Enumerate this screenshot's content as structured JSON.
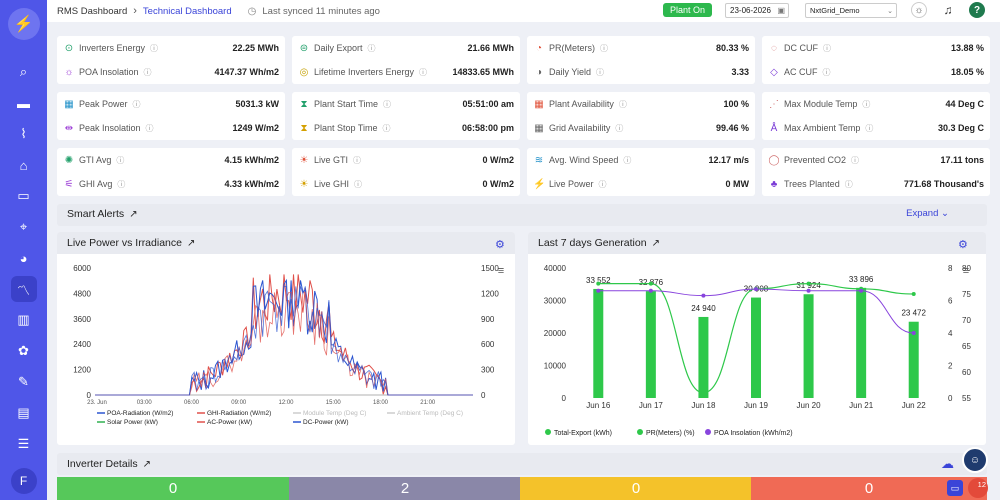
{
  "header": {
    "crumb1": "RMS Dashboard",
    "crumb2": "Technical Dashboard",
    "sync_text": "Last synced 11 minutes ago",
    "plant_status": "Plant On",
    "date": "23-06-2026",
    "plant": "NxtGrid_Demo",
    "notification_count": "12"
  },
  "sidebar": {
    "user_initial": "F"
  },
  "kpis": [
    {
      "icon": "⊙",
      "color": "#22a06b",
      "label": "Inverters Energy",
      "value": "22.25 MWh"
    },
    {
      "icon": "☼",
      "color": "#9b3bd6",
      "label": "POA Insolation",
      "value": "4147.37 Wh/m2"
    },
    {
      "icon": "⊜",
      "color": "#22a06b",
      "label": "Daily Export",
      "value": "21.66 MWh"
    },
    {
      "icon": "◎",
      "color": "#c4a000",
      "label": "Lifetime Inverters Energy",
      "value": "14833.65 MWh"
    },
    {
      "icon": "◔",
      "color": "#e0523a",
      "label": "PR(Meters)",
      "value": "80.33 %"
    },
    {
      "icon": "◑",
      "color": "#666",
      "label": "Daily Yield",
      "value": "3.33"
    },
    {
      "icon": "◌",
      "color": "#d07070",
      "label": "DC CUF",
      "value": "13.88 %"
    },
    {
      "icon": "◇",
      "color": "#7a3bd6",
      "label": "AC CUF",
      "value": "18.05 %"
    },
    {
      "icon": "▦",
      "color": "#2090c8",
      "label": "Peak Power",
      "value": "5031.3 kW"
    },
    {
      "icon": "⇹",
      "color": "#9b3bd6",
      "label": "Peak Insolation",
      "value": "1249 W/m2"
    },
    {
      "icon": "⧗",
      "color": "#22a06b",
      "label": "Plant Start Time",
      "value": "05:51:00 am"
    },
    {
      "icon": "⧗",
      "color": "#d4a000",
      "label": "Plant Stop Time",
      "value": "06:58:00 pm"
    },
    {
      "icon": "▦",
      "color": "#e0523a",
      "label": "Plant Availability",
      "value": "100 %"
    },
    {
      "icon": "▦",
      "color": "#666",
      "label": "Grid Availability",
      "value": "99.46 %"
    },
    {
      "icon": "⋰",
      "color": "#d07070",
      "label": "Max Module Temp",
      "value": "44 Deg C"
    },
    {
      "icon": "Å",
      "color": "#7a3bd6",
      "label": "Max Ambient Temp",
      "value": "30.3 Deg C"
    },
    {
      "icon": "✺",
      "color": "#22a06b",
      "label": "GTI Avg",
      "value": "4.15 kWh/m2"
    },
    {
      "icon": "⚟",
      "color": "#9b3bd6",
      "label": "GHI Avg",
      "value": "4.33 kWh/m2"
    },
    {
      "icon": "☀",
      "color": "#e0523a",
      "label": "Live GTI",
      "value": "0 W/m2"
    },
    {
      "icon": "☀",
      "color": "#d4a000",
      "label": "Live GHI",
      "value": "0 W/m2"
    },
    {
      "icon": "≋",
      "color": "#2090c8",
      "label": "Avg. Wind Speed",
      "value": "12.17 m/s"
    },
    {
      "icon": "⚡",
      "color": "#666",
      "label": "Live Power",
      "value": "0 MW"
    },
    {
      "icon": "◯",
      "color": "#d07070",
      "label": "Prevented CO2",
      "value": "17.11 tons"
    },
    {
      "icon": "♣",
      "color": "#7a3bd6",
      "label": "Trees Planted",
      "value": "771.68 Thousand's"
    }
  ],
  "alerts": {
    "title": "Smart Alerts",
    "expand": "Expand"
  },
  "live_chart": {
    "title": "Live Power vs Irradiance",
    "left_ticks": [
      "6000",
      "4800",
      "3600",
      "2400",
      "1200",
      "0"
    ],
    "right_ticks": [
      "1500",
      "1200",
      "900",
      "600",
      "300",
      "0"
    ],
    "x_ticks": [
      "23. Jun",
      "03:00",
      "06:00",
      "09:00",
      "12:00",
      "15:00",
      "18:00",
      "21:00"
    ],
    "legend": [
      {
        "label": "POA-Radiation (W/m2)",
        "color": "#2c55d0",
        "muted": false
      },
      {
        "label": "GHI-Radiation (W/m2)",
        "color": "#e0504a",
        "muted": false
      },
      {
        "label": "Module Temp (Deg C)",
        "color": "#ccc",
        "muted": true
      },
      {
        "label": "Ambient Temp (Deg C)",
        "color": "#ccc",
        "muted": true
      },
      {
        "label": "Solar Power (kW)",
        "color": "#30b050",
        "muted": false
      },
      {
        "label": "AC-Power (kW)",
        "color": "#e0504a",
        "muted": false
      },
      {
        "label": "DC-Power (kW)",
        "color": "#2c55d0",
        "muted": false
      }
    ]
  },
  "chart_data": {
    "type": "bar",
    "title": "Last 7 days Generation",
    "categories": [
      "Jun 16",
      "Jun 17",
      "Jun 18",
      "Jun 19",
      "Jun 20",
      "Jun 21",
      "Jun 22"
    ],
    "series": [
      {
        "name": "Total-Export (kWh)",
        "type": "bar",
        "color": "#2ec84a",
        "values": [
          33552,
          32876,
          24940,
          30908,
          31924,
          33896,
          23472
        ]
      },
      {
        "name": "PR(Meters) (%)",
        "type": "line",
        "color": "#2ec84a",
        "values": [
          77,
          77,
          56,
          76,
          77,
          76,
          75
        ]
      },
      {
        "name": "POA Insolation (kWh/m2)",
        "type": "line",
        "color": "#8844dd",
        "values": [
          6.6,
          6.6,
          6.3,
          6.7,
          6.6,
          6.6,
          4.0
        ]
      }
    ],
    "bar_labels": [
      "33 552",
      "32 876",
      "24 940",
      "30 908",
      "31 924",
      "33 896",
      "23 472"
    ],
    "ylim": [
      0,
      40000
    ],
    "y_ticks": [
      "40000",
      "30000",
      "20000",
      "10000",
      "0"
    ],
    "y2_ticks": [
      "8",
      "6",
      "4",
      "2",
      "0"
    ],
    "y3_ticks": [
      "80",
      "75",
      "70",
      "65",
      "60",
      "55"
    ]
  },
  "inverter": {
    "title": "Inverter Details",
    "tiles": [
      {
        "value": "0",
        "color": "#56c85a"
      },
      {
        "value": "2",
        "color": "#8a87a8"
      },
      {
        "value": "0",
        "color": "#f4c22a"
      },
      {
        "value": "0",
        "color": "#f06a55"
      }
    ]
  }
}
